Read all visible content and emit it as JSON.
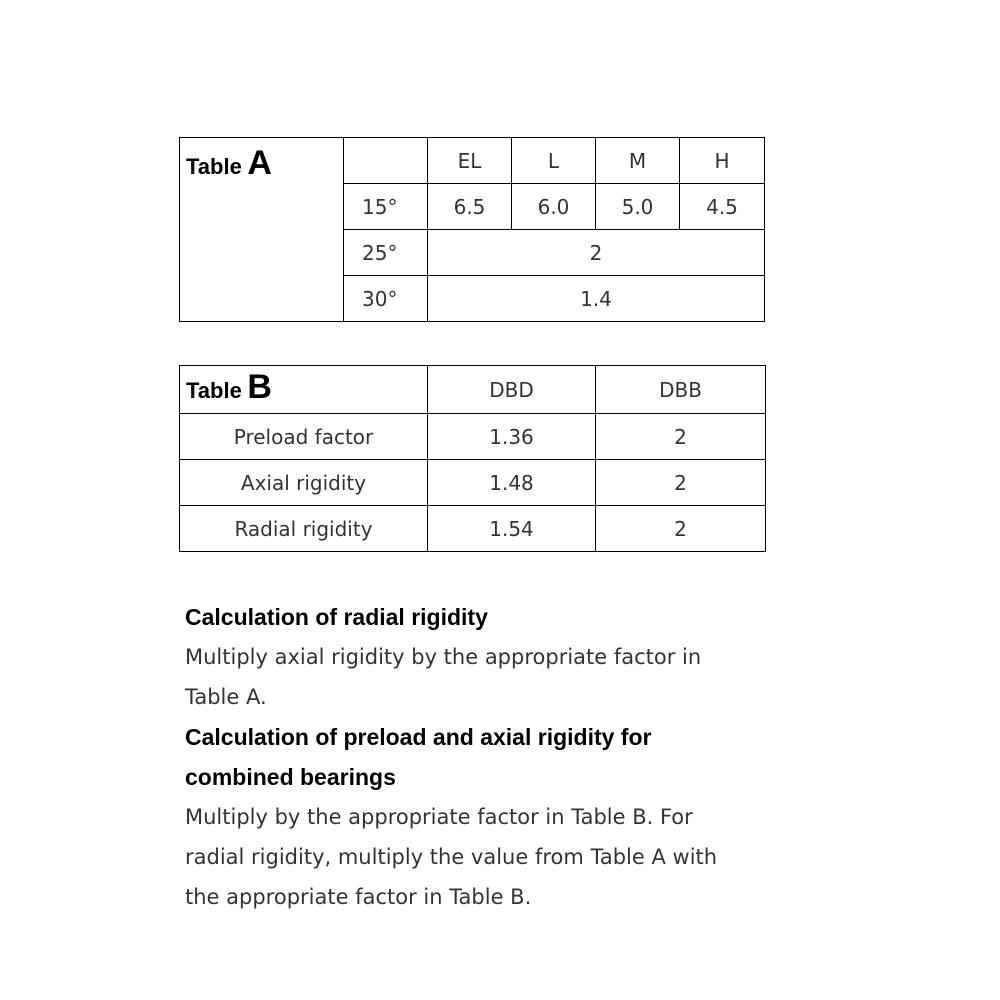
{
  "table_a": {
    "caption_prefix": "Table",
    "caption_letter": "A",
    "columns": [
      "EL",
      "L",
      "M",
      "H"
    ],
    "rows": [
      {
        "angle": "15°",
        "values": [
          "6.5",
          "6.0",
          "5.0",
          "4.5"
        ]
      },
      {
        "angle": "25°",
        "value": "2"
      },
      {
        "angle": "30°",
        "value": "1.4"
      }
    ]
  },
  "table_b": {
    "caption_prefix": "Table",
    "caption_letter": "B",
    "columns": [
      "DBD",
      "DBB"
    ],
    "rows": [
      {
        "label": "Preload factor",
        "values": [
          "1.36",
          "2"
        ]
      },
      {
        "label": "Axial rigidity",
        "values": [
          "1.48",
          "2"
        ]
      },
      {
        "label": "Radial rigidity",
        "values": [
          "1.54",
          "2"
        ]
      }
    ]
  },
  "sections": [
    {
      "heading_lines": [
        "Calculation of radial rigidity"
      ],
      "body_lines": [
        "Multiply axial rigidity by the appropriate factor in",
        "Table A."
      ]
    },
    {
      "heading_lines": [
        "Calculation of preload and axial rigidity for",
        "combined bearings"
      ],
      "body_lines": [
        "Multiply by the appropriate factor in Table B. For",
        "radial rigidity, multiply the value from Table A with",
        "the appropriate factor in Table B."
      ]
    }
  ]
}
